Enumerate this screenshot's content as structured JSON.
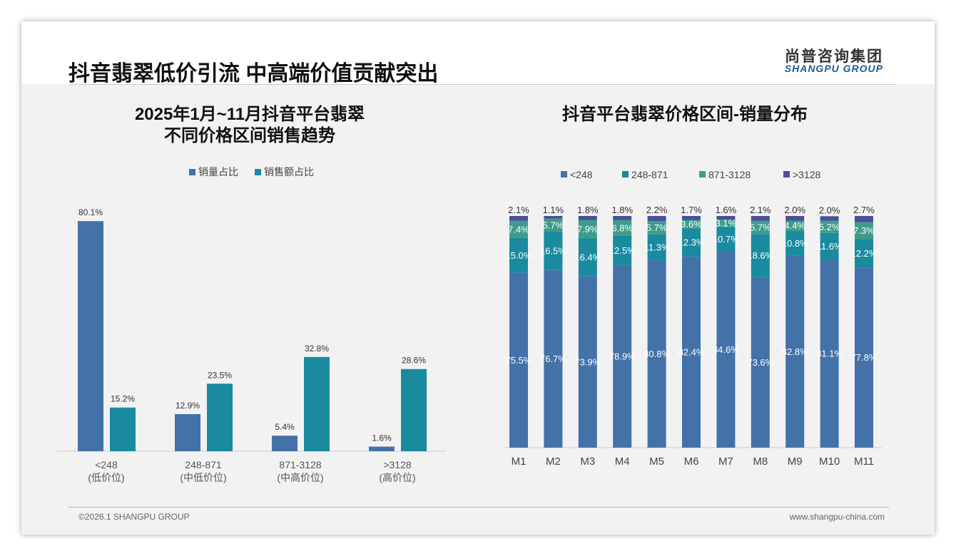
{
  "header": {
    "title": "抖音翡翠低价引流 中高端价值贡献突出",
    "logo_cn": "尚普咨询集团",
    "logo_en": "SHANGPU GROUP"
  },
  "footer": {
    "copyright": "©2026.1 SHANGPU GROUP",
    "url": "www.shangpu-china.com"
  },
  "colors": {
    "blue": "#4372a8",
    "teal": "#1a8a9f",
    "green": "#3d9c8a",
    "navy": "#4a4f97"
  },
  "chart_data": [
    {
      "type": "bar",
      "title_line1": "2025年1月~11月抖音平台翡翠",
      "title_line2": "不同价格区间销售趋势",
      "categories": [
        "<248",
        "248-871",
        "871-3128",
        ">3128"
      ],
      "category_sub": [
        "(低价位)",
        "(中低价位)",
        "(中高价位)",
        "(高价位)"
      ],
      "series": [
        {
          "name": "销量占比",
          "values": [
            80.1,
            12.9,
            5.4,
            1.6
          ]
        },
        {
          "name": "销售额占比",
          "values": [
            15.2,
            23.5,
            32.8,
            28.6
          ]
        }
      ],
      "ylim": [
        0,
        85
      ],
      "legend": "top"
    },
    {
      "type": "bar",
      "stacked": true,
      "title": "抖音平台翡翠价格区间-销量分布",
      "categories": [
        "M1",
        "M2",
        "M3",
        "M4",
        "M5",
        "M6",
        "M7",
        "M8",
        "M9",
        "M10",
        "M11"
      ],
      "series": [
        {
          "name": "<248",
          "values": [
            75.5,
            76.7,
            73.9,
            78.9,
            80.8,
            82.4,
            84.6,
            73.6,
            82.8,
            81.1,
            77.8
          ]
        },
        {
          "name": "248-871",
          "values": [
            15.0,
            16.5,
            16.4,
            12.5,
            11.3,
            12.3,
            10.7,
            18.6,
            10.8,
            11.6,
            12.2
          ]
        },
        {
          "name": "871-3128",
          "values": [
            7.4,
            5.7,
            7.9,
            6.8,
            5.7,
            3.6,
            3.1,
            5.7,
            4.4,
            5.2,
            7.3
          ]
        },
        {
          "name": ">3128",
          "values": [
            2.1,
            1.1,
            1.8,
            1.8,
            2.2,
            1.7,
            1.6,
            2.1,
            2.0,
            2.0,
            2.7
          ]
        }
      ],
      "ylim": [
        0,
        100
      ],
      "legend": "top"
    }
  ]
}
